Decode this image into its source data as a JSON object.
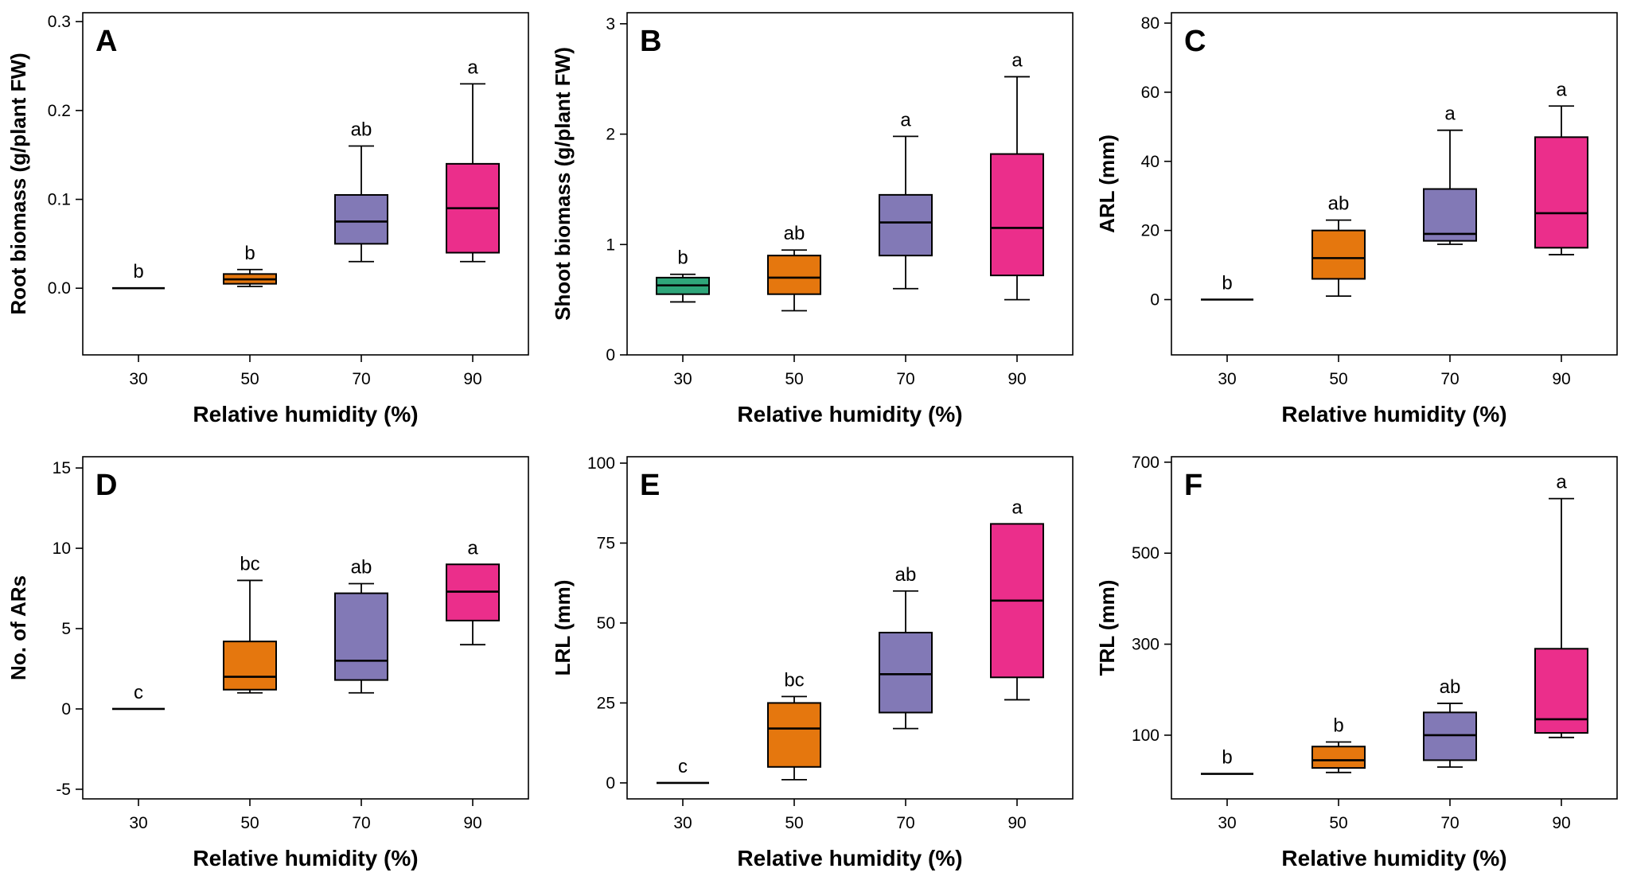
{
  "figure": {
    "xlabel": "Relative humidity (%)",
    "categories": [
      "30",
      "50",
      "70",
      "90"
    ],
    "palette": {
      "humidity_30": "#2FA67A",
      "humidity_50": "#E5770E",
      "humidity_70": "#8279B6",
      "humidity_90": "#EB2E8B"
    }
  },
  "chart_data": [
    {
      "type": "box",
      "panel_label": "A",
      "ylabel": "Root biomass (g/plant FW)",
      "xlabel": "Relative humidity (%)",
      "categories": [
        "30",
        "50",
        "70",
        "90"
      ],
      "ylim": [
        -0.075,
        0.31
      ],
      "yticks": [
        {
          "value": 0.0,
          "label": "0.0"
        },
        {
          "value": 0.1,
          "label": "0.1"
        },
        {
          "value": 0.2,
          "label": "0.2"
        },
        {
          "value": 0.3,
          "label": "0.3"
        }
      ],
      "boxes": [
        {
          "category": "30",
          "color": "#2FA67A",
          "whislo": 0.0,
          "q1": 0.0,
          "med": 0.0,
          "q3": 0.0,
          "whishi": 0.0,
          "sig": "b"
        },
        {
          "category": "50",
          "color": "#E5770E",
          "whislo": 0.002,
          "q1": 0.005,
          "med": 0.01,
          "q3": 0.016,
          "whishi": 0.021,
          "sig": "b"
        },
        {
          "category": "70",
          "color": "#8279B6",
          "whislo": 0.03,
          "q1": 0.05,
          "med": 0.075,
          "q3": 0.105,
          "whishi": 0.16,
          "sig": "ab"
        },
        {
          "category": "90",
          "color": "#EB2E8B",
          "whislo": 0.03,
          "q1": 0.04,
          "med": 0.09,
          "q3": 0.14,
          "whishi": 0.23,
          "sig": "a"
        }
      ]
    },
    {
      "type": "box",
      "panel_label": "B",
      "ylabel": "Shoot biomass (g/plant FW)",
      "xlabel": "Relative humidity (%)",
      "categories": [
        "30",
        "50",
        "70",
        "90"
      ],
      "ylim": [
        0,
        3.1
      ],
      "yticks": [
        {
          "value": 0,
          "label": "0"
        },
        {
          "value": 1,
          "label": "1"
        },
        {
          "value": 2,
          "label": "2"
        },
        {
          "value": 3,
          "label": "3"
        }
      ],
      "boxes": [
        {
          "category": "30",
          "color": "#2FA67A",
          "whislo": 0.48,
          "q1": 0.55,
          "med": 0.63,
          "q3": 0.7,
          "whishi": 0.73,
          "sig": "b"
        },
        {
          "category": "50",
          "color": "#E5770E",
          "whislo": 0.4,
          "q1": 0.55,
          "med": 0.7,
          "q3": 0.9,
          "whishi": 0.95,
          "sig": "ab"
        },
        {
          "category": "70",
          "color": "#8279B6",
          "whislo": 0.6,
          "q1": 0.9,
          "med": 1.2,
          "q3": 1.45,
          "whishi": 1.98,
          "sig": "a"
        },
        {
          "category": "90",
          "color": "#EB2E8B",
          "whislo": 0.5,
          "q1": 0.72,
          "med": 1.15,
          "q3": 1.82,
          "whishi": 2.52,
          "sig": "a"
        }
      ]
    },
    {
      "type": "box",
      "panel_label": "C",
      "ylabel": "ARL (mm)",
      "xlabel": "Relative humidity (%)",
      "categories": [
        "30",
        "50",
        "70",
        "90"
      ],
      "ylim": [
        -16,
        83
      ],
      "yticks": [
        {
          "value": 0,
          "label": "0"
        },
        {
          "value": 20,
          "label": "20"
        },
        {
          "value": 40,
          "label": "40"
        },
        {
          "value": 60,
          "label": "60"
        },
        {
          "value": 80,
          "label": "80"
        }
      ],
      "boxes": [
        {
          "category": "30",
          "color": "#2FA67A",
          "whislo": 0,
          "q1": 0,
          "med": 0,
          "q3": 0,
          "whishi": 0,
          "sig": "b"
        },
        {
          "category": "50",
          "color": "#E5770E",
          "whislo": 1,
          "q1": 6,
          "med": 12,
          "q3": 20,
          "whishi": 23,
          "sig": "ab"
        },
        {
          "category": "70",
          "color": "#8279B6",
          "whislo": 16,
          "q1": 17,
          "med": 19,
          "q3": 32,
          "whishi": 49,
          "sig": "a"
        },
        {
          "category": "90",
          "color": "#EB2E8B",
          "whislo": 13,
          "q1": 15,
          "med": 25,
          "q3": 47,
          "whishi": 56,
          "sig": "a"
        }
      ]
    },
    {
      "type": "box",
      "panel_label": "D",
      "ylabel": "No. of ARs",
      "xlabel": "Relative humidity (%)",
      "categories": [
        "30",
        "50",
        "70",
        "90"
      ],
      "ylim": [
        -5.6,
        15.7
      ],
      "yticks": [
        {
          "value": -5,
          "label": "-5"
        },
        {
          "value": 0,
          "label": "0"
        },
        {
          "value": 5,
          "label": "5"
        },
        {
          "value": 10,
          "label": "10"
        },
        {
          "value": 15,
          "label": "15"
        }
      ],
      "boxes": [
        {
          "category": "30",
          "color": "#2FA67A",
          "whislo": 0,
          "q1": 0,
          "med": 0,
          "q3": 0,
          "whishi": 0,
          "sig": "c"
        },
        {
          "category": "50",
          "color": "#E5770E",
          "whislo": 1,
          "q1": 1.2,
          "med": 2,
          "q3": 4.2,
          "whishi": 8,
          "sig": "bc"
        },
        {
          "category": "70",
          "color": "#8279B6",
          "whislo": 1,
          "q1": 1.8,
          "med": 3,
          "q3": 7.2,
          "whishi": 7.8,
          "sig": "ab"
        },
        {
          "category": "90",
          "color": "#EB2E8B",
          "whislo": 4,
          "q1": 5.5,
          "med": 7.3,
          "q3": 9,
          "whishi": 9,
          "sig": "a"
        }
      ]
    },
    {
      "type": "box",
      "panel_label": "E",
      "ylabel": "LRL (mm)",
      "xlabel": "Relative humidity (%)",
      "categories": [
        "30",
        "50",
        "70",
        "90"
      ],
      "ylim": [
        -5,
        102
      ],
      "yticks": [
        {
          "value": 0,
          "label": "0"
        },
        {
          "value": 25,
          "label": "25"
        },
        {
          "value": 50,
          "label": "50"
        },
        {
          "value": 75,
          "label": "75"
        },
        {
          "value": 100,
          "label": "100"
        }
      ],
      "boxes": [
        {
          "category": "30",
          "color": "#2FA67A",
          "whislo": 0,
          "q1": 0,
          "med": 0,
          "q3": 0,
          "whishi": 0,
          "sig": "c"
        },
        {
          "category": "50",
          "color": "#E5770E",
          "whislo": 1,
          "q1": 5,
          "med": 17,
          "q3": 25,
          "whishi": 27,
          "sig": "bc"
        },
        {
          "category": "70",
          "color": "#8279B6",
          "whislo": 17,
          "q1": 22,
          "med": 34,
          "q3": 47,
          "whishi": 60,
          "sig": "ab"
        },
        {
          "category": "90",
          "color": "#EB2E8B",
          "whislo": 26,
          "q1": 33,
          "med": 57,
          "q3": 81,
          "whishi": 81,
          "sig": "a"
        }
      ]
    },
    {
      "type": "box",
      "panel_label": "F",
      "ylabel": "TRL (mm)",
      "xlabel": "Relative humidity (%)",
      "categories": [
        "30",
        "50",
        "70",
        "90"
      ],
      "ylim": [
        -40,
        712
      ],
      "yticks": [
        {
          "value": 100,
          "label": "100"
        },
        {
          "value": 300,
          "label": "300"
        },
        {
          "value": 500,
          "label": "500"
        },
        {
          "value": 700,
          "label": "700"
        }
      ],
      "boxes": [
        {
          "category": "30",
          "color": "#2FA67A",
          "whislo": 15,
          "q1": 15,
          "med": 15,
          "q3": 15,
          "whishi": 15,
          "sig": "b"
        },
        {
          "category": "50",
          "color": "#E5770E",
          "whislo": 18,
          "q1": 28,
          "med": 45,
          "q3": 75,
          "whishi": 85,
          "sig": "b"
        },
        {
          "category": "70",
          "color": "#8279B6",
          "whislo": 30,
          "q1": 45,
          "med": 100,
          "q3": 150,
          "whishi": 170,
          "sig": "ab"
        },
        {
          "category": "90",
          "color": "#EB2E8B",
          "whislo": 95,
          "q1": 105,
          "med": 135,
          "q3": 290,
          "whishi": 620,
          "sig": "a"
        }
      ]
    }
  ]
}
